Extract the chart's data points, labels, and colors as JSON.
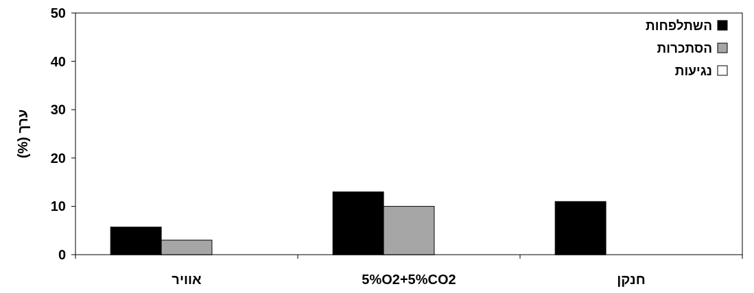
{
  "chart_data": {
    "type": "bar",
    "ylabel": "ערך (%)",
    "categories": [
      "אוויר",
      "5%O2+5%CO2",
      "חנקן"
    ],
    "series": [
      {
        "name": "השתלפחות",
        "color": "#000000",
        "values": [
          5.7,
          13,
          11
        ]
      },
      {
        "name": "הסתכרות",
        "color": "#a6a6a6",
        "values": [
          3,
          10,
          0
        ]
      },
      {
        "name": "נגיעות",
        "color": "#ffffff",
        "values": [
          0,
          0,
          0
        ]
      }
    ],
    "ylim": [
      0,
      50
    ],
    "yticks": [
      0,
      10,
      20,
      30,
      40,
      50
    ],
    "grid": false,
    "legend": "top right"
  }
}
